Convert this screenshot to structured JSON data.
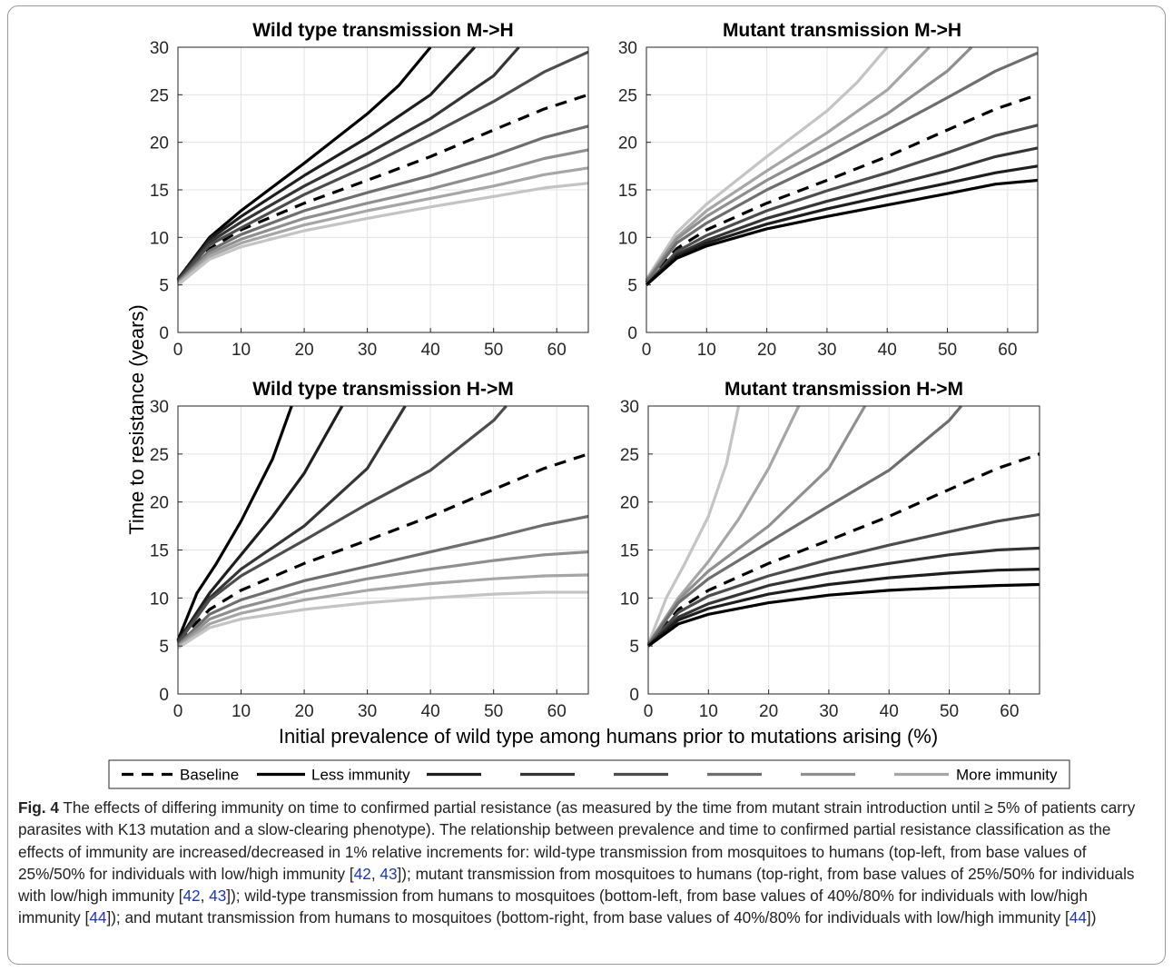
{
  "figure": {
    "shared_ylabel": "Time to resistance (years)",
    "shared_xlabel": "Initial prevalence of wild type among humans prior to mutations arising (%)",
    "legend": {
      "entries": [
        "Baseline",
        "Less immunity",
        "",
        "",
        "",
        "",
        "",
        "More immunity"
      ],
      "colors": [
        "#000000",
        "#000000",
        "#1e1e1e",
        "#353535",
        "#4d4d4d",
        "#6e6e6e",
        "#8f8f8f",
        "#a6a6a6"
      ],
      "styles": [
        "dashed",
        "solid",
        "solid",
        "solid",
        "solid",
        "solid",
        "solid",
        "solid"
      ]
    }
  },
  "chart_data": [
    {
      "type": "line",
      "title": "Wild type transmission M->H",
      "xlim": [
        0,
        65
      ],
      "ylim": [
        0,
        30
      ],
      "xticks": [
        0,
        10,
        20,
        30,
        40,
        50,
        60
      ],
      "yticks": [
        0,
        5,
        10,
        15,
        20,
        25,
        30
      ],
      "grid": true,
      "series": [
        {
          "name": "Baseline",
          "style": "dashed",
          "color": "#000000",
          "x": [
            0,
            5,
            10,
            20,
            30,
            40,
            50,
            58,
            65
          ],
          "y": [
            5.5,
            8.8,
            10.8,
            13.6,
            16.0,
            18.5,
            21.3,
            23.5,
            25.0
          ]
        },
        {
          "name": "Less immunity",
          "color": "#000000",
          "x": [
            0,
            5,
            10,
            20,
            30,
            35,
            40
          ],
          "y": [
            5.6,
            10.0,
            12.8,
            17.8,
            23.0,
            26.0,
            30.0
          ]
        },
        {
          "color": "#1e1e1e",
          "x": [
            0,
            5,
            10,
            20,
            30,
            40,
            47
          ],
          "y": [
            5.6,
            9.8,
            12.2,
            16.5,
            20.5,
            25.0,
            30.0
          ]
        },
        {
          "color": "#353535",
          "x": [
            0,
            5,
            10,
            20,
            30,
            40,
            50,
            54
          ],
          "y": [
            5.5,
            9.5,
            11.6,
            15.4,
            18.8,
            22.5,
            27.0,
            30.0
          ]
        },
        {
          "color": "#4d4d4d",
          "x": [
            0,
            5,
            10,
            20,
            30,
            40,
            50,
            58,
            65
          ],
          "y": [
            5.4,
            9.2,
            11.0,
            14.5,
            17.5,
            20.8,
            24.3,
            27.4,
            29.5
          ]
        },
        {
          "color": "#6e6e6e",
          "x": [
            0,
            5,
            10,
            20,
            30,
            40,
            50,
            58,
            65
          ],
          "y": [
            5.3,
            8.6,
            10.3,
            12.8,
            14.7,
            16.5,
            18.6,
            20.5,
            21.7
          ]
        },
        {
          "color": "#8f8f8f",
          "x": [
            0,
            5,
            10,
            20,
            30,
            40,
            50,
            58,
            65
          ],
          "y": [
            5.2,
            8.3,
            9.8,
            12.0,
            13.6,
            15.1,
            16.8,
            18.3,
            19.2
          ]
        },
        {
          "color": "#a6a6a6",
          "x": [
            0,
            5,
            10,
            20,
            30,
            40,
            50,
            58,
            65
          ],
          "y": [
            5.1,
            8.0,
            9.4,
            11.3,
            12.8,
            14.1,
            15.4,
            16.6,
            17.3
          ]
        },
        {
          "color": "#c4c4c4",
          "x": [
            0,
            5,
            10,
            20,
            30,
            40,
            50,
            58,
            65
          ],
          "y": [
            5.0,
            7.7,
            9.0,
            10.7,
            12.0,
            13.2,
            14.3,
            15.2,
            15.7
          ]
        }
      ]
    },
    {
      "type": "line",
      "title": "Mutant transmission M->H",
      "xlim": [
        0,
        65
      ],
      "ylim": [
        0,
        30
      ],
      "xticks": [
        0,
        10,
        20,
        30,
        40,
        50,
        60
      ],
      "yticks": [
        0,
        5,
        10,
        15,
        20,
        25,
        30
      ],
      "grid": true,
      "series": [
        {
          "name": "Baseline",
          "style": "dashed",
          "color": "#000000",
          "x": [
            0,
            5,
            10,
            20,
            30,
            40,
            50,
            58,
            65
          ],
          "y": [
            5.2,
            8.8,
            10.8,
            13.6,
            16.0,
            18.5,
            21.3,
            23.5,
            25.0
          ]
        },
        {
          "color": "#c4c4c4",
          "x": [
            0,
            5,
            10,
            20,
            30,
            35,
            40
          ],
          "y": [
            5.6,
            10.5,
            13.5,
            18.5,
            23.3,
            26.3,
            30.0
          ]
        },
        {
          "color": "#a6a6a6",
          "x": [
            0,
            5,
            10,
            20,
            30,
            40,
            47
          ],
          "y": [
            5.5,
            10.0,
            12.8,
            17.0,
            21.0,
            25.5,
            30.0
          ]
        },
        {
          "color": "#8f8f8f",
          "x": [
            0,
            5,
            10,
            20,
            30,
            40,
            50,
            54
          ],
          "y": [
            5.4,
            9.8,
            12.2,
            16.0,
            19.4,
            23.0,
            27.5,
            30.0
          ]
        },
        {
          "color": "#6e6e6e",
          "x": [
            0,
            5,
            10,
            20,
            30,
            40,
            50,
            58,
            65
          ],
          "y": [
            5.3,
            9.4,
            11.5,
            15.0,
            18.0,
            21.3,
            24.7,
            27.5,
            29.4
          ]
        },
        {
          "color": "#4d4d4d",
          "x": [
            0,
            5,
            10,
            20,
            30,
            40,
            50,
            58,
            65
          ],
          "y": [
            5.0,
            8.5,
            10.2,
            12.8,
            14.9,
            16.8,
            18.9,
            20.7,
            21.8
          ]
        },
        {
          "color": "#353535",
          "x": [
            0,
            5,
            10,
            20,
            30,
            40,
            50,
            58,
            65
          ],
          "y": [
            5.0,
            8.2,
            9.7,
            12.0,
            13.8,
            15.4,
            17.0,
            18.5,
            19.4
          ]
        },
        {
          "color": "#1e1e1e",
          "x": [
            0,
            5,
            10,
            20,
            30,
            40,
            50,
            58,
            65
          ],
          "y": [
            5.0,
            8.0,
            9.4,
            11.4,
            13.0,
            14.4,
            15.7,
            16.8,
            17.5
          ]
        },
        {
          "name": "Less immunity",
          "color": "#000000",
          "x": [
            0,
            5,
            10,
            20,
            30,
            40,
            50,
            58,
            65
          ],
          "y": [
            5.0,
            7.8,
            9.1,
            10.9,
            12.2,
            13.4,
            14.6,
            15.6,
            16.0
          ]
        }
      ]
    },
    {
      "type": "line",
      "title": "Wild type transmission H->M",
      "xlim": [
        0,
        65
      ],
      "ylim": [
        0,
        30
      ],
      "xticks": [
        0,
        10,
        20,
        30,
        40,
        50,
        60
      ],
      "yticks": [
        0,
        5,
        10,
        15,
        20,
        25,
        30
      ],
      "grid": true,
      "series": [
        {
          "name": "Baseline",
          "style": "dashed",
          "color": "#000000",
          "x": [
            0,
            5,
            10,
            20,
            30,
            40,
            50,
            58,
            65
          ],
          "y": [
            5.5,
            8.8,
            10.8,
            13.6,
            16.0,
            18.5,
            21.3,
            23.5,
            25.0
          ]
        },
        {
          "name": "Less immunity",
          "color": "#000000",
          "x": [
            0,
            3,
            6,
            10,
            15,
            18
          ],
          "y": [
            5.6,
            10.5,
            13.5,
            18.0,
            24.5,
            30.0
          ]
        },
        {
          "color": "#1e1e1e",
          "x": [
            0,
            5,
            10,
            15,
            20,
            26
          ],
          "y": [
            5.5,
            10.5,
            14.5,
            18.5,
            23.0,
            30.0
          ]
        },
        {
          "color": "#353535",
          "x": [
            0,
            5,
            10,
            20,
            30,
            36
          ],
          "y": [
            5.4,
            10.0,
            13.0,
            17.5,
            23.5,
            30.0
          ]
        },
        {
          "color": "#4d4d4d",
          "x": [
            0,
            5,
            10,
            20,
            30,
            40,
            50,
            52
          ],
          "y": [
            5.3,
            9.8,
            12.3,
            16.0,
            19.8,
            23.3,
            28.5,
            30.0
          ]
        },
        {
          "color": "#6e6e6e",
          "x": [
            0,
            5,
            10,
            20,
            30,
            40,
            50,
            58,
            65
          ],
          "y": [
            5.1,
            8.3,
            9.8,
            11.8,
            13.3,
            14.8,
            16.3,
            17.6,
            18.5
          ]
        },
        {
          "color": "#8f8f8f",
          "x": [
            0,
            5,
            10,
            20,
            30,
            40,
            50,
            58,
            65
          ],
          "y": [
            5.0,
            7.8,
            9.0,
            10.7,
            12.0,
            13.0,
            13.9,
            14.5,
            14.8
          ]
        },
        {
          "color": "#a6a6a6",
          "x": [
            0,
            5,
            10,
            20,
            30,
            40,
            50,
            58,
            65
          ],
          "y": [
            4.9,
            7.3,
            8.4,
            9.8,
            10.8,
            11.5,
            12.0,
            12.3,
            12.4
          ]
        },
        {
          "color": "#c4c4c4",
          "x": [
            0,
            5,
            10,
            20,
            30,
            40,
            50,
            58,
            65
          ],
          "y": [
            4.8,
            6.9,
            7.8,
            8.8,
            9.5,
            10.0,
            10.4,
            10.6,
            10.6
          ]
        }
      ]
    },
    {
      "type": "line",
      "title": "Mutant transmission H->M",
      "xlim": [
        0,
        65
      ],
      "ylim": [
        0,
        30
      ],
      "xticks": [
        0,
        10,
        20,
        30,
        40,
        50,
        60
      ],
      "yticks": [
        0,
        5,
        10,
        15,
        20,
        25,
        30
      ],
      "grid": true,
      "series": [
        {
          "name": "Baseline",
          "style": "dashed",
          "color": "#000000",
          "x": [
            0,
            5,
            10,
            20,
            30,
            40,
            50,
            58,
            65
          ],
          "y": [
            5.0,
            8.8,
            10.8,
            13.6,
            16.0,
            18.5,
            21.3,
            23.5,
            25.0
          ]
        },
        {
          "color": "#c4c4c4",
          "x": [
            0,
            3,
            6,
            10,
            13,
            15
          ],
          "y": [
            5.2,
            10.0,
            13.5,
            18.5,
            24.0,
            30.0
          ]
        },
        {
          "color": "#a6a6a6",
          "x": [
            0,
            5,
            10,
            15,
            20,
            25
          ],
          "y": [
            5.2,
            10.0,
            13.8,
            18.2,
            23.5,
            30.0
          ]
        },
        {
          "color": "#8f8f8f",
          "x": [
            0,
            5,
            10,
            20,
            30,
            36
          ],
          "y": [
            5.2,
            9.8,
            12.8,
            17.5,
            23.5,
            30.0
          ]
        },
        {
          "color": "#6e6e6e",
          "x": [
            0,
            5,
            10,
            20,
            30,
            40,
            50,
            52
          ],
          "y": [
            5.1,
            9.5,
            12.0,
            15.8,
            19.6,
            23.3,
            28.5,
            30.0
          ]
        },
        {
          "color": "#4d4d4d",
          "x": [
            0,
            5,
            10,
            20,
            30,
            40,
            50,
            58,
            65
          ],
          "y": [
            5.0,
            8.5,
            10.2,
            12.3,
            14.0,
            15.5,
            16.9,
            18.0,
            18.7
          ]
        },
        {
          "color": "#353535",
          "x": [
            0,
            5,
            10,
            20,
            30,
            40,
            50,
            58,
            65
          ],
          "y": [
            5.0,
            8.0,
            9.4,
            11.3,
            12.6,
            13.6,
            14.5,
            15.0,
            15.2
          ]
        },
        {
          "color": "#1e1e1e",
          "x": [
            0,
            5,
            10,
            20,
            30,
            40,
            50,
            58,
            65
          ],
          "y": [
            5.0,
            7.7,
            8.9,
            10.4,
            11.4,
            12.1,
            12.6,
            12.9,
            13.0
          ]
        },
        {
          "name": "Less immunity",
          "color": "#000000",
          "x": [
            0,
            5,
            10,
            20,
            30,
            40,
            50,
            58,
            65
          ],
          "y": [
            5.0,
            7.3,
            8.3,
            9.5,
            10.3,
            10.8,
            11.1,
            11.3,
            11.4
          ]
        }
      ]
    }
  ],
  "caption": {
    "label": "Fig. 4",
    "segments": [
      {
        "text": " The effects of differing immunity on time to confirmed partial resistance (as measured by the time from mutant strain introduction until ≥ 5% of patients carry parasites with K13 mutation and a slow-clearing phenotype). The relationship between prevalence and time to confirmed partial resistance classification as the effects of immunity are increased/decreased in 1% relative increments for: wild-type transmission from mosquitoes to humans (top-left, from base values of 25%/50% for individuals with low/high immunity [",
        "ref": false
      },
      {
        "text": "42",
        "ref": true
      },
      {
        "text": ", ",
        "ref": false
      },
      {
        "text": "43",
        "ref": true
      },
      {
        "text": "]); mutant transmission from mosquitoes to humans (top-right, from base values of 25%/50% for individuals with low/high immunity [",
        "ref": false
      },
      {
        "text": "42",
        "ref": true
      },
      {
        "text": ", ",
        "ref": false
      },
      {
        "text": "43",
        "ref": true
      },
      {
        "text": "]); wild-type transmission from humans to mosquitoes (bottom-left, from base values of 40%/80% for individuals with low/high immunity [",
        "ref": false
      },
      {
        "text": "44",
        "ref": true
      },
      {
        "text": "]); and mutant transmission from humans to mosquitoes (bottom-right, from base values of 40%/80% for individuals with low/high immunity [",
        "ref": false
      },
      {
        "text": "44",
        "ref": true
      },
      {
        "text": "])",
        "ref": false
      }
    ]
  }
}
